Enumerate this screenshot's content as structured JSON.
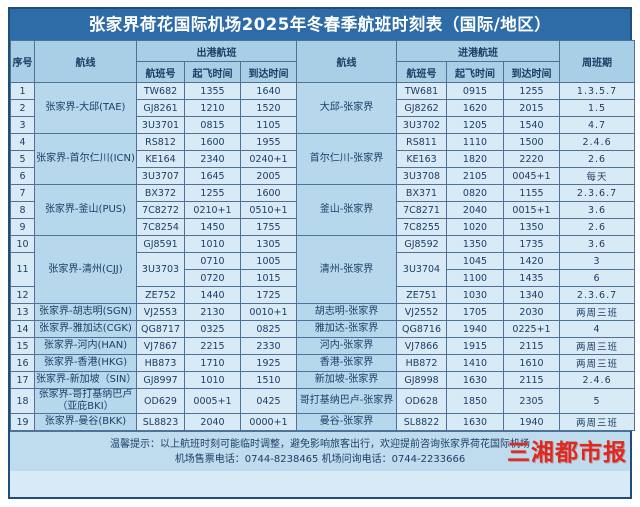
{
  "title": "张家界荷花国际机场2025年冬春季航班时刻表（国际/地区）",
  "table": {
    "header": {
      "seq": "序号",
      "route_out": "航线",
      "dep_group": "出港航班",
      "route_in": "航线",
      "arr_group": "进港航班",
      "week": "周班期",
      "flight_no": "航班号",
      "dep_time": "起飞时间",
      "arr_time": "到达时间"
    },
    "groups": [
      {
        "route_out": "张家界-大邱(TAE)",
        "route_in": "大邱-张家界",
        "rows": [
          {
            "no": "1",
            "out": {
              "fn": "TW682",
              "dep": "1355",
              "arr": "1640"
            },
            "in": {
              "fn": "TW681",
              "dep": "0915",
              "arr": "1255"
            },
            "week": "1.3.5.7"
          },
          {
            "no": "2",
            "out": {
              "fn": "GJ8261",
              "dep": "1210",
              "arr": "1520"
            },
            "in": {
              "fn": "GJ8262",
              "dep": "1620",
              "arr": "2015"
            },
            "week": "1.5"
          },
          {
            "no": "3",
            "out": {
              "fn": "3U3701",
              "dep": "0815",
              "arr": "1105"
            },
            "in": {
              "fn": "3U3702",
              "dep": "1205",
              "arr": "1540"
            },
            "week": "4.7"
          }
        ]
      },
      {
        "route_out": "张家界-首尔仁川(ICN)",
        "route_in": "首尔仁川-张家界",
        "rows": [
          {
            "no": "4",
            "out": {
              "fn": "RS812",
              "dep": "1600",
              "arr": "1955"
            },
            "in": {
              "fn": "RS811",
              "dep": "1110",
              "arr": "1500"
            },
            "week": "2.4.6"
          },
          {
            "no": "5",
            "out": {
              "fn": "KE164",
              "dep": "2340",
              "arr": "0240+1"
            },
            "in": {
              "fn": "KE163",
              "dep": "1820",
              "arr": "2220"
            },
            "week": "2.6"
          },
          {
            "no": "6",
            "out": {
              "fn": "3U3707",
              "dep": "1645",
              "arr": "2005"
            },
            "in": {
              "fn": "3U3708",
              "dep": "2105",
              "arr": "0045+1"
            },
            "week": "每天"
          }
        ]
      },
      {
        "route_out": "张家界-釜山(PUS)",
        "route_in": "釜山-张家界",
        "rows": [
          {
            "no": "7",
            "out": {
              "fn": "BX372",
              "dep": "1255",
              "arr": "1600"
            },
            "in": {
              "fn": "BX371",
              "dep": "0820",
              "arr": "1155"
            },
            "week": "2.3.6.7"
          },
          {
            "no": "8",
            "out": {
              "fn": "7C8272",
              "dep": "0210+1",
              "arr": "0510+1"
            },
            "in": {
              "fn": "7C8271",
              "dep": "2040",
              "arr": "0015+1"
            },
            "week": "3.6"
          },
          {
            "no": "9",
            "out": {
              "fn": "7C8254",
              "dep": "1450",
              "arr": "1755"
            },
            "in": {
              "fn": "7C8255",
              "dep": "1020",
              "arr": "1350"
            },
            "week": "2.6"
          }
        ]
      },
      {
        "route_out": "张家界-清州(CJJ)",
        "route_in": "清州-张家界",
        "rows": [
          {
            "no": "10",
            "out": {
              "fn": "GJ8591",
              "dep": "1010",
              "arr": "1305"
            },
            "in": {
              "fn": "GJ8592",
              "dep": "1350",
              "arr": "1735"
            },
            "week": "3.6"
          },
          {
            "no": "11",
            "out": {
              "fn": "3U3703",
              "slots": [
                {
                  "dep": "0710",
                  "arr": "1005"
                },
                {
                  "dep": "0720",
                  "arr": "1015"
                }
              ]
            },
            "in": {
              "fn": "3U3704",
              "slots": [
                {
                  "dep": "1045",
                  "arr": "1420"
                },
                {
                  "dep": "1100",
                  "arr": "1435"
                }
              ]
            },
            "weeks": [
              "3",
              "6"
            ]
          },
          {
            "no": "12",
            "out": {
              "fn": "ZE752",
              "dep": "1440",
              "arr": "1725"
            },
            "in": {
              "fn": "ZE751",
              "dep": "1030",
              "arr": "1340"
            },
            "week": "2.3.6.7"
          }
        ]
      },
      {
        "route_out": "张家界-胡志明(SGN)",
        "route_in": "胡志明-张家界",
        "rows": [
          {
            "no": "13",
            "out": {
              "fn": "VJ2553",
              "dep": "2130",
              "arr": "0010+1"
            },
            "in": {
              "fn": "VJ2552",
              "dep": "1705",
              "arr": "2030"
            },
            "week": "两周三班"
          }
        ]
      },
      {
        "route_out": "张家界-雅加达(CGK)",
        "route_in": "雅加达-张家界",
        "rows": [
          {
            "no": "14",
            "out": {
              "fn": "QG8717",
              "dep": "0325",
              "arr": "0825"
            },
            "in": {
              "fn": "QG8716",
              "dep": "1940",
              "arr": "0225+1"
            },
            "week": "4"
          }
        ]
      },
      {
        "route_out": "张家界-河内(HAN)",
        "route_in": "河内-张家界",
        "rows": [
          {
            "no": "15",
            "out": {
              "fn": "VJ7867",
              "dep": "2215",
              "arr": "2330"
            },
            "in": {
              "fn": "VJ7866",
              "dep": "1915",
              "arr": "2115"
            },
            "week": "两周三班"
          }
        ]
      },
      {
        "route_out": "张家界-香港(HKG)",
        "route_in": "香港-张家界",
        "rows": [
          {
            "no": "16",
            "out": {
              "fn": "HB873",
              "dep": "1710",
              "arr": "1925"
            },
            "in": {
              "fn": "HB872",
              "dep": "1410",
              "arr": "1610"
            },
            "week": "两周三班"
          }
        ]
      },
      {
        "route_out": "张家界-新加坡（SIN）",
        "route_in": "新加坡-张家界",
        "rows": [
          {
            "no": "17",
            "out": {
              "fn": "GJ8997",
              "dep": "1010",
              "arr": "1510"
            },
            "in": {
              "fn": "GJ8998",
              "dep": "1630",
              "arr": "2115"
            },
            "week": "2.4.6"
          }
        ]
      },
      {
        "route_out": "张家界-哥打基纳巴卢（亚庇BKI）",
        "route_in": "哥打基纳巴卢-张家界",
        "rows": [
          {
            "no": "18",
            "out": {
              "fn": "OD629",
              "dep": "0005+1",
              "arr": "0425"
            },
            "in": {
              "fn": "OD628",
              "dep": "1850",
              "arr": "2305"
            },
            "week": "5"
          }
        ]
      },
      {
        "route_out": "张家界-曼谷(BKK)",
        "route_in": "曼谷-张家界",
        "rows": [
          {
            "no": "19",
            "out": {
              "fn": "SL8823",
              "dep": "2040",
              "arr": "0000+1"
            },
            "in": {
              "fn": "SL8822",
              "dep": "1630",
              "arr": "1940"
            },
            "week": "两周三班"
          }
        ]
      }
    ]
  },
  "footer": {
    "line1": "温馨提示：以上航班时刻可能临时调整，避免影响旅客出行，欢迎提前咨询张家界荷花国际机场",
    "line2": "机场售票电话：0744-8238465 机场问询电话：0744-2233666"
  },
  "logo": "三湘都市报",
  "colors": {
    "title_bg": "#2e6ca8",
    "title_text": "#ffffff",
    "header_bg": "#a9cfe6",
    "route_bg": "#b7d8ec",
    "cell_bg": "#d8eaf6",
    "footer_bg": "#bedcee",
    "border": "#4f7396",
    "outer_border": "#1f4e79",
    "text": "#1c3e66",
    "logo_red": "#dc2a1e"
  }
}
